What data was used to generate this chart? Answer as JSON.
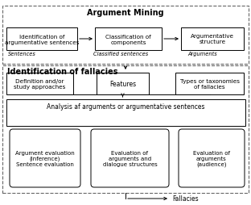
{
  "title_am": "Argument Mining",
  "title_iof": "Identification of fallacies",
  "box_am1": "Identification of\nargumentative sentences",
  "box_am2": "Classification of\ncomponents",
  "box_am3": "Argumentative\nstructure",
  "label_am1": "Sentences",
  "label_am2": "Classified sentences",
  "label_am3": "Arguments",
  "box_iof1": "Definition and/or\nstudy approaches",
  "box_iof2": "Features",
  "box_iof3": "Types or taxonomies\nof fallacies",
  "box_analysis": "Analysis af arguments or argumentative sentences",
  "box_sub1": "Argument evaluation\n(inference)\nSentence evaluation",
  "box_sub2": "Evaluation of\narguments and\ndialogue structures",
  "box_sub3": "Evaluation of\narguments\n(audience)",
  "label_fallacies": "Fallacies",
  "bg_color": "#ffffff",
  "text_color": "#000000",
  "dash_color": "#666666"
}
